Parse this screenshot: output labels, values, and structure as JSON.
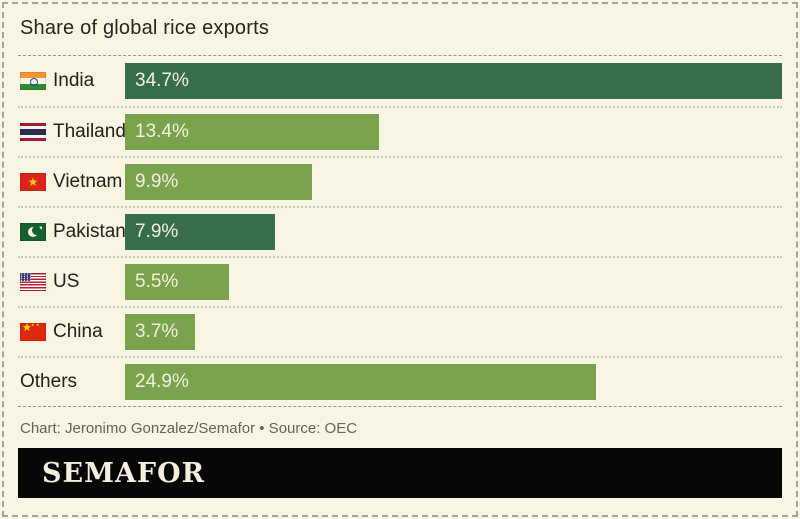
{
  "title": "Share of global rice exports",
  "chart_data": {
    "type": "bar",
    "orientation": "horizontal",
    "title": "Share of global rice exports",
    "categories": [
      "India",
      "Thailand",
      "Vietnam",
      "Pakistan",
      "US",
      "China",
      "Others"
    ],
    "values": [
      34.7,
      13.4,
      9.9,
      7.9,
      5.5,
      3.7,
      24.9
    ],
    "value_labels": [
      "34.7%",
      "13.4%",
      "9.9%",
      "7.9%",
      "5.5%",
      "3.7%",
      "24.9%"
    ],
    "unit": "%",
    "xlim": [
      0,
      34.7
    ],
    "grid": false,
    "legend": "none",
    "bar_colors": [
      "#386e47",
      "#7ba24c",
      "#7ba24c",
      "#386e47",
      "#7ba24c",
      "#7ba24c",
      "#7ba24c"
    ],
    "flags": [
      "india",
      "thailand",
      "vietnam",
      "pakistan",
      "us",
      "china",
      ""
    ]
  },
  "footer": {
    "credit": "Chart: Jeronimo Gonzalez/Semafor • Source: OEC"
  },
  "brand": {
    "wordmark": "SEMAFOR"
  },
  "colors": {
    "background": "#f8f5e3",
    "bar_dark": "#386e47",
    "bar_light": "#7ba24c",
    "bar_text": "#f4f1de",
    "banner_bg": "#070707",
    "banner_text": "#f4efdc",
    "text": "#21211d",
    "muted_text": "#64635b"
  }
}
